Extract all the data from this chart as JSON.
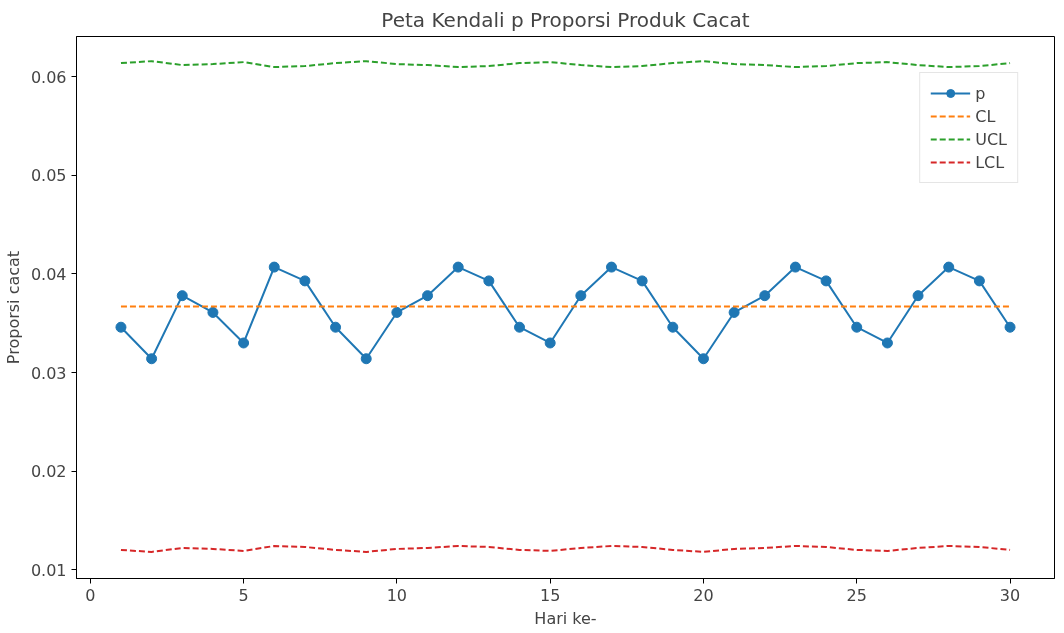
{
  "chart_data": {
    "type": "line",
    "title": "Peta Kendali p Proporsi Produk Cacat",
    "xlabel": "Hari ke-",
    "ylabel": "Proporsi cacat",
    "x": [
      1,
      2,
      3,
      4,
      5,
      6,
      7,
      8,
      9,
      10,
      11,
      12,
      13,
      14,
      15,
      16,
      17,
      18,
      19,
      20,
      21,
      22,
      23,
      24,
      25,
      26,
      27,
      28,
      29,
      30
    ],
    "xlim": [
      -0.45,
      31.45
    ],
    "xticks": [
      0,
      5,
      10,
      15,
      20,
      25,
      30
    ],
    "ylim": [
      0.0091,
      0.0641
    ],
    "yticks": [
      0.01,
      0.02,
      0.03,
      0.04,
      0.05,
      0.06
    ],
    "legend": "top right",
    "grid": false,
    "series": [
      {
        "name": "p",
        "color": "#1f77b4",
        "marker": "circle",
        "line_style": "solid",
        "values": [
          0.0346,
          0.0314,
          0.0378,
          0.0361,
          0.033,
          0.0407,
          0.0393,
          0.0346,
          0.0314,
          0.0361,
          0.0378,
          0.0407,
          0.0393,
          0.0346,
          0.033,
          0.0378,
          0.0407,
          0.0393,
          0.0346,
          0.0314,
          0.0361,
          0.0378,
          0.0407,
          0.0393,
          0.0346,
          0.033,
          0.0378,
          0.0407,
          0.0393,
          0.0346
        ]
      },
      {
        "name": "CL",
        "color": "#ff7f0e",
        "marker": "none",
        "line_style": "dashed",
        "values": [
          0.0367,
          0.0367,
          0.0367,
          0.0367,
          0.0367,
          0.0367,
          0.0367,
          0.0367,
          0.0367,
          0.0367,
          0.0367,
          0.0367,
          0.0367,
          0.0367,
          0.0367,
          0.0367,
          0.0367,
          0.0367,
          0.0367,
          0.0367,
          0.0367,
          0.0367,
          0.0367,
          0.0367,
          0.0367,
          0.0367,
          0.0367,
          0.0367,
          0.0367,
          0.0367
        ]
      },
      {
        "name": "UCL",
        "color": "#2ca02c",
        "marker": "none",
        "line_style": "dashed",
        "values": [
          0.0614,
          0.0616,
          0.0612,
          0.0613,
          0.0615,
          0.061,
          0.0611,
          0.0614,
          0.0616,
          0.0613,
          0.0612,
          0.061,
          0.0611,
          0.0614,
          0.0615,
          0.0612,
          0.061,
          0.0611,
          0.0614,
          0.0616,
          0.0613,
          0.0612,
          0.061,
          0.0611,
          0.0614,
          0.0615,
          0.0612,
          0.061,
          0.0611,
          0.0614
        ]
      },
      {
        "name": "LCL",
        "color": "#d62728",
        "marker": "none",
        "line_style": "dashed",
        "values": [
          0.012,
          0.0118,
          0.0122,
          0.0121,
          0.0119,
          0.0124,
          0.0123,
          0.012,
          0.0118,
          0.0121,
          0.0122,
          0.0124,
          0.0123,
          0.012,
          0.0119,
          0.0122,
          0.0124,
          0.0123,
          0.012,
          0.0118,
          0.0121,
          0.0122,
          0.0124,
          0.0123,
          0.012,
          0.0119,
          0.0122,
          0.0124,
          0.0123,
          0.012
        ]
      }
    ]
  }
}
